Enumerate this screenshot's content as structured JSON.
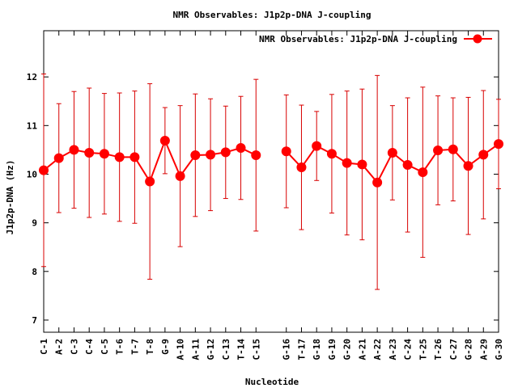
{
  "chart_data": {
    "type": "line",
    "title": "NMR Observables: J1p2p-DNA J-coupling",
    "xlabel": "Nucleotide",
    "ylabel": "J1p2p-DNA (Hz)",
    "ylim": [
      6.75,
      12.95
    ],
    "yticks": [
      7,
      8,
      9,
      10,
      11,
      12
    ],
    "grid": false,
    "legend_position": "top-right",
    "colors": {
      "series": "#ff0000",
      "errorbar": "#d80000",
      "axis": "#000000"
    },
    "series": [
      {
        "name": "NMR Observables: J1p2p-DNA J-coupling",
        "points": [
          {
            "label": "C-1",
            "x": 1,
            "y": 10.08,
            "err": 1.98
          },
          {
            "label": "A-2",
            "x": 2,
            "y": 10.33,
            "err": 1.12
          },
          {
            "label": "C-3",
            "x": 3,
            "y": 10.5,
            "err": 1.2
          },
          {
            "label": "C-4",
            "x": 4,
            "y": 10.44,
            "err": 1.33
          },
          {
            "label": "C-5",
            "x": 5,
            "y": 10.42,
            "err": 1.24
          },
          {
            "label": "T-6",
            "x": 6,
            "y": 10.35,
            "err": 1.32
          },
          {
            "label": "T-7",
            "x": 7,
            "y": 10.35,
            "err": 1.36
          },
          {
            "label": "T-8",
            "x": 8,
            "y": 9.85,
            "err": 2.01
          },
          {
            "label": "G-9",
            "x": 9,
            "y": 10.69,
            "err": 0.68
          },
          {
            "label": "A-10",
            "x": 10,
            "y": 9.96,
            "err": 1.45
          },
          {
            "label": "A-11",
            "x": 11,
            "y": 10.39,
            "err": 1.26
          },
          {
            "label": "G-12",
            "x": 12,
            "y": 10.4,
            "err": 1.15
          },
          {
            "label": "C-13",
            "x": 13,
            "y": 10.45,
            "err": 0.95
          },
          {
            "label": "T-14",
            "x": 14,
            "y": 10.54,
            "err": 1.06
          },
          {
            "label": "C-15",
            "x": 15,
            "y": 10.39,
            "err": 1.56
          },
          {
            "label": "G-16",
            "x": 17,
            "y": 10.47,
            "err": 1.16
          },
          {
            "label": "T-17",
            "x": 18,
            "y": 10.14,
            "err": 1.28
          },
          {
            "label": "G-18",
            "x": 19,
            "y": 10.58,
            "err": 0.71
          },
          {
            "label": "G-19",
            "x": 20,
            "y": 10.42,
            "err": 1.22
          },
          {
            "label": "G-20",
            "x": 21,
            "y": 10.23,
            "err": 1.48
          },
          {
            "label": "A-21",
            "x": 22,
            "y": 10.2,
            "err": 1.55
          },
          {
            "label": "A-22",
            "x": 23,
            "y": 9.83,
            "err": 2.2
          },
          {
            "label": "A-23",
            "x": 24,
            "y": 10.44,
            "err": 0.97
          },
          {
            "label": "C-24",
            "x": 25,
            "y": 10.19,
            "err": 1.38
          },
          {
            "label": "T-25",
            "x": 26,
            "y": 10.04,
            "err": 1.75
          },
          {
            "label": "T-26",
            "x": 27,
            "y": 10.49,
            "err": 1.12
          },
          {
            "label": "C-27",
            "x": 28,
            "y": 10.51,
            "err": 1.06
          },
          {
            "label": "G-28",
            "x": 29,
            "y": 10.17,
            "err": 1.41
          },
          {
            "label": "A-29",
            "x": 30,
            "y": 10.4,
            "err": 1.32
          },
          {
            "label": "G-30",
            "x": 31,
            "y": 10.62,
            "err": 0.92
          }
        ]
      }
    ]
  }
}
